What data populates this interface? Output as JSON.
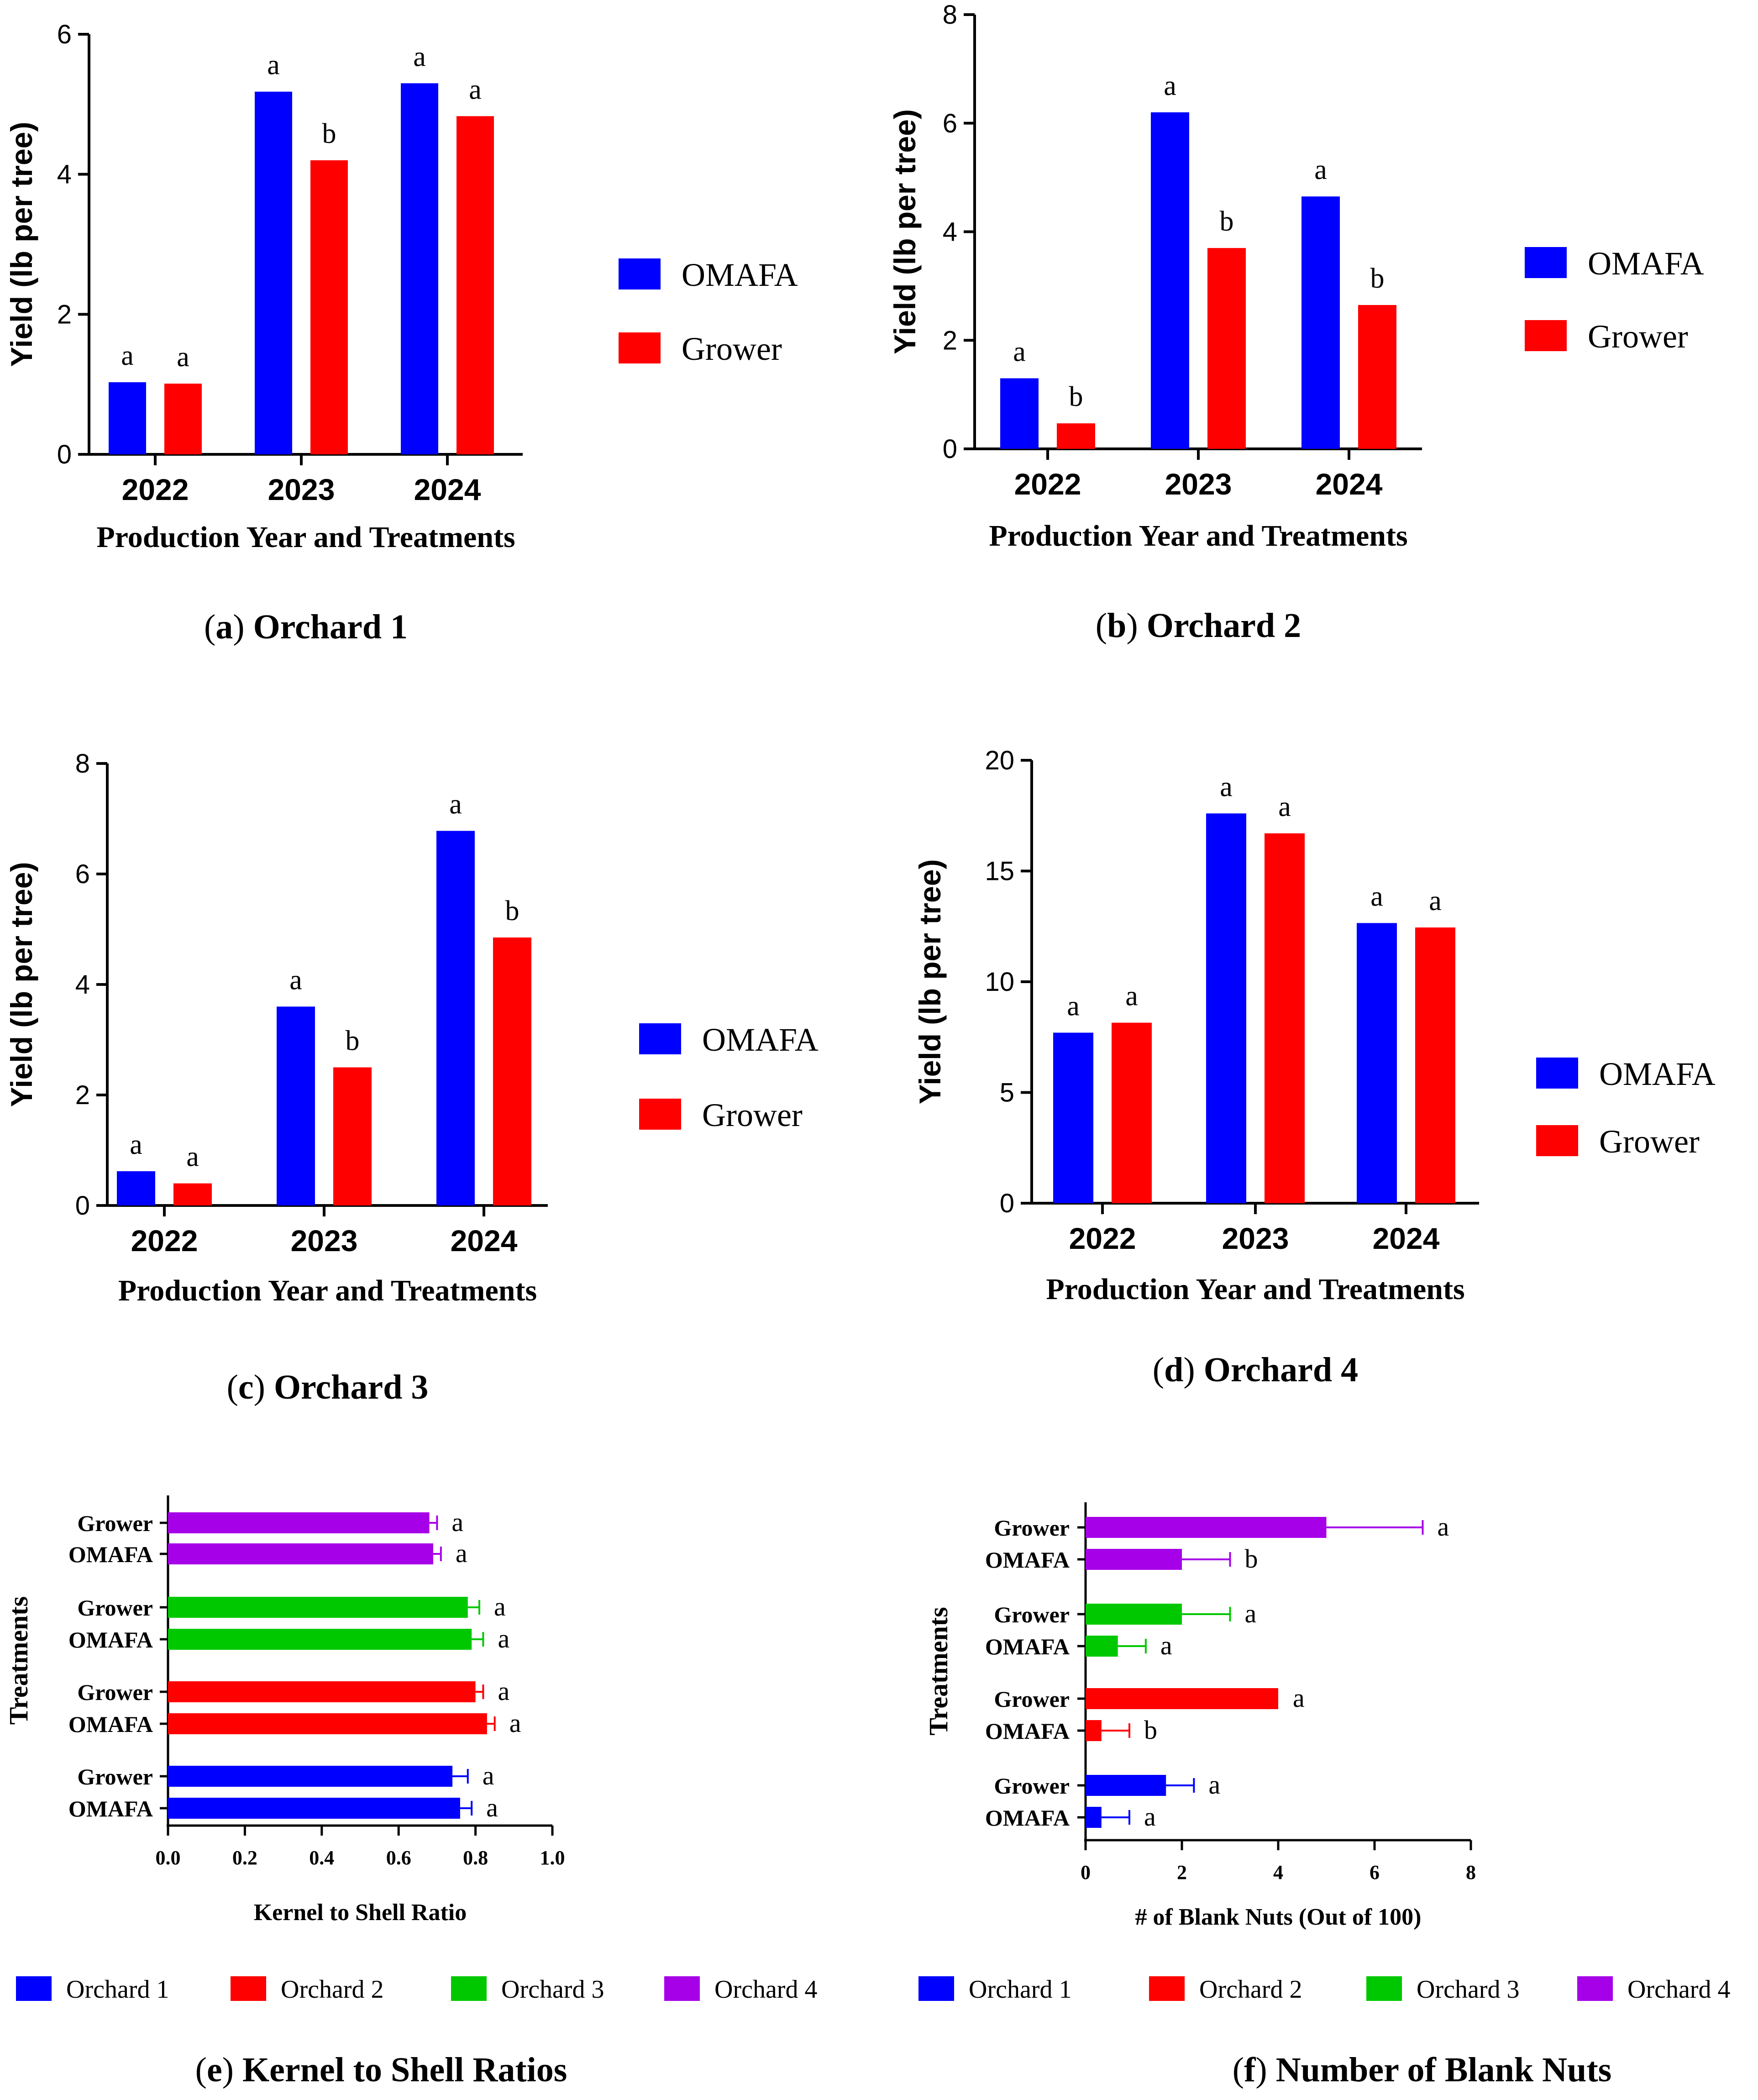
{
  "colors": {
    "blue": "#0000ff",
    "red": "#ff0000",
    "green": "#00c800",
    "purple": "#a600e8"
  },
  "chart_data": [
    {
      "id": "a",
      "type": "bar",
      "caption_letter": "a",
      "caption_title": "Orchard 1",
      "categories": [
        "2022",
        "2023",
        "2024"
      ],
      "series": [
        {
          "name": "OMAFA",
          "values": [
            1.03,
            5.18,
            5.3
          ],
          "letters": [
            "a",
            "a",
            "a"
          ]
        },
        {
          "name": "Grower",
          "values": [
            1.01,
            4.2,
            4.83
          ],
          "letters": [
            "a",
            "b",
            "a"
          ]
        }
      ],
      "xlabel": "Production Year and Treatments",
      "ylabel": "Yield (lb per tree)",
      "ylim": [
        0,
        6
      ],
      "yticks": [
        "0",
        "2",
        "4",
        "6"
      ],
      "legend": [
        "OMAFA",
        "Grower"
      ]
    },
    {
      "id": "b",
      "type": "bar",
      "caption_letter": "b",
      "caption_title": "Orchard 2",
      "categories": [
        "2022",
        "2023",
        "2024"
      ],
      "series": [
        {
          "name": "OMAFA",
          "values": [
            1.3,
            6.2,
            4.65
          ],
          "letters": [
            "a",
            "a",
            "a"
          ]
        },
        {
          "name": "Grower",
          "values": [
            0.47,
            3.7,
            2.65
          ],
          "letters": [
            "b",
            "b",
            "b"
          ]
        }
      ],
      "xlabel": "Production Year and Treatments",
      "ylabel": "Yield (lb per tree)",
      "ylim": [
        0,
        8
      ],
      "yticks": [
        "0",
        "2",
        "4",
        "6",
        "8"
      ],
      "legend": [
        "OMAFA",
        "Grower"
      ]
    },
    {
      "id": "c",
      "type": "bar",
      "caption_letter": "c",
      "caption_title": "Orchard 3",
      "categories": [
        "2022",
        "2023",
        "2024"
      ],
      "series": [
        {
          "name": "OMAFA",
          "values": [
            0.62,
            3.6,
            6.78
          ],
          "letters": [
            "a",
            "a",
            "a"
          ]
        },
        {
          "name": "Grower",
          "values": [
            0.4,
            2.5,
            4.85
          ],
          "letters": [
            "a",
            "b",
            "b"
          ]
        }
      ],
      "xlabel": "Production Year and Treatments",
      "ylabel": "Yield (lb per tree)",
      "ylim": [
        0,
        8
      ],
      "yticks": [
        "0",
        "2",
        "4",
        "6",
        "8"
      ],
      "legend": [
        "OMAFA",
        "Grower"
      ]
    },
    {
      "id": "d",
      "type": "bar",
      "caption_letter": "d",
      "caption_title": "Orchard 4",
      "categories": [
        "2022",
        "2023",
        "2024"
      ],
      "series": [
        {
          "name": "OMAFA",
          "values": [
            7.7,
            17.6,
            12.65
          ],
          "letters": [
            "a",
            "a",
            "a"
          ]
        },
        {
          "name": "Grower",
          "values": [
            8.15,
            16.7,
            12.45
          ],
          "letters": [
            "a",
            "a",
            "a"
          ]
        }
      ],
      "xlabel": "Production Year and Treatments",
      "ylabel": "Yield (lb per tree)",
      "ylim": [
        0,
        20
      ],
      "yticks": [
        "0",
        "5",
        "10",
        "15",
        "20"
      ],
      "legend": [
        "OMAFA",
        "Grower"
      ]
    },
    {
      "id": "e",
      "type": "hbar",
      "caption_letter": "e",
      "caption_title": "Kernel to Shell Ratios",
      "xlabel": "Kernel to Shell Ratio",
      "ylabel": "Treatments",
      "xlim": [
        0,
        1
      ],
      "xticks": [
        "0.0",
        "0.2",
        "0.4",
        "0.6",
        "0.8",
        "1.0"
      ],
      "rows": [
        {
          "label": "Grower",
          "orchard": 4,
          "value": 0.68,
          "err": 0.02,
          "letter": "a"
        },
        {
          "label": "OMAFA",
          "orchard": 4,
          "value": 0.69,
          "err": 0.02,
          "letter": "a"
        },
        {
          "label": "Grower",
          "orchard": 3,
          "value": 0.78,
          "err": 0.03,
          "letter": "a"
        },
        {
          "label": "OMAFA",
          "orchard": 3,
          "value": 0.79,
          "err": 0.03,
          "letter": "a"
        },
        {
          "label": "Grower",
          "orchard": 2,
          "value": 0.8,
          "err": 0.02,
          "letter": "a"
        },
        {
          "label": "OMAFA",
          "orchard": 2,
          "value": 0.83,
          "err": 0.02,
          "letter": "a"
        },
        {
          "label": "Grower",
          "orchard": 1,
          "value": 0.74,
          "err": 0.04,
          "letter": "a"
        },
        {
          "label": "OMAFA",
          "orchard": 1,
          "value": 0.76,
          "err": 0.03,
          "letter": "a"
        }
      ],
      "legend": [
        "Orchard 1",
        "Orchard 2",
        "Orchard 3",
        "Orchard 4"
      ]
    },
    {
      "id": "f",
      "type": "hbar",
      "caption_letter": "f",
      "caption_title": "Number of Blank Nuts",
      "xlabel": "# of Blank Nuts (Out of 100)",
      "ylabel": "Treatments",
      "xlim": [
        0,
        8
      ],
      "xticks": [
        "0",
        "2",
        "4",
        "6",
        "8"
      ],
      "rows": [
        {
          "label": "Grower",
          "orchard": 4,
          "value": 5.0,
          "err": 2.0,
          "letter": "a"
        },
        {
          "label": "OMAFA",
          "orchard": 4,
          "value": 2.0,
          "err": 1.0,
          "letter": "b"
        },
        {
          "label": "Grower",
          "orchard": 3,
          "value": 2.0,
          "err": 1.0,
          "letter": "a"
        },
        {
          "label": "OMAFA",
          "orchard": 3,
          "value": 0.67,
          "err": 0.58,
          "letter": "a"
        },
        {
          "label": "Grower",
          "orchard": 2,
          "value": 4.0,
          "err": 0.0,
          "letter": "a"
        },
        {
          "label": "OMAFA",
          "orchard": 2,
          "value": 0.33,
          "err": 0.58,
          "letter": "b"
        },
        {
          "label": "Grower",
          "orchard": 1,
          "value": 1.67,
          "err": 0.58,
          "letter": "a"
        },
        {
          "label": "OMAFA",
          "orchard": 1,
          "value": 0.33,
          "err": 0.58,
          "letter": "a"
        }
      ],
      "legend": [
        "Orchard 1",
        "Orchard 2",
        "Orchard 3",
        "Orchard 4"
      ]
    }
  ]
}
